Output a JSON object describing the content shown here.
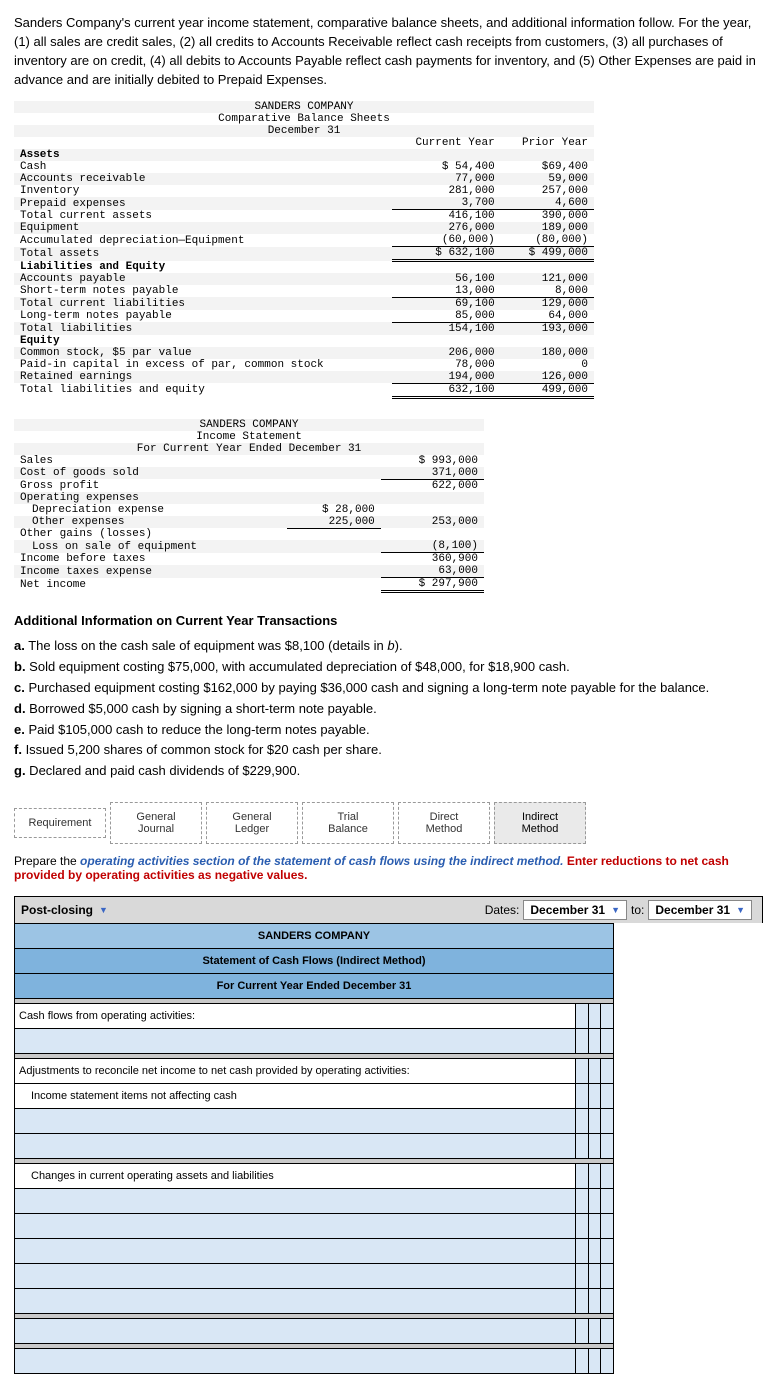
{
  "intro": "Sanders Company's current year income statement, comparative balance sheets, and additional information follow. For the year, (1) all sales are credit sales, (2) all credits to Accounts Receivable reflect cash receipts from customers, (3) all purchases of inventory are on credit, (4) all debits to Accounts Payable reflect cash payments for inventory, and (5) Other Expenses are paid in advance and are initially debited to Prepaid Expenses.",
  "bs_head1": "SANDERS COMPANY",
  "bs_head2": "Comparative Balance Sheets",
  "bs_head3": "December 31",
  "col_cy": "Current Year",
  "col_py": "Prior Year",
  "assets_h": "Assets",
  "rows_bs": [
    {
      "l": "Cash",
      "c": "$ 54,400",
      "p": "$69,400"
    },
    {
      "l": "Accounts receivable",
      "c": "77,000",
      "p": "59,000"
    },
    {
      "l": "Inventory",
      "c": "281,000",
      "p": "257,000"
    },
    {
      "l": "Prepaid expenses",
      "c": "3,700",
      "p": "4,600"
    },
    {
      "l": "Total current assets",
      "c": "416,100",
      "p": "390,000"
    },
    {
      "l": "Equipment",
      "c": "276,000",
      "p": "189,000"
    },
    {
      "l": "Accumulated depreciation—Equipment",
      "c": "(60,000)",
      "p": "(80,000)"
    }
  ],
  "total_assets": {
    "l": "Total assets",
    "c": "$ 632,100",
    "p": "$ 499,000"
  },
  "liab_h": "Liabilities and Equity",
  "rows_liab": [
    {
      "l": "Accounts payable",
      "c": "56,100",
      "p": "121,000"
    },
    {
      "l": "Short-term notes payable",
      "c": "13,000",
      "p": "8,000"
    },
    {
      "l": "Total current liabilities",
      "c": "69,100",
      "p": "129,000"
    },
    {
      "l": "Long-term notes payable",
      "c": "85,000",
      "p": "64,000"
    },
    {
      "l": "Total liabilities",
      "c": "154,100",
      "p": "193,000"
    }
  ],
  "eq_h": "Equity",
  "rows_eq": [
    {
      "l": "Common stock, $5 par value",
      "c": "206,000",
      "p": "180,000"
    },
    {
      "l": "Paid-in capital in excess of par, common stock",
      "c": "78,000",
      "p": "0"
    },
    {
      "l": "Retained earnings",
      "c": "194,000",
      "p": "126,000"
    }
  ],
  "total_le": {
    "l": "Total liabilities and equity",
    "c": "632,100",
    "p": "499,000"
  },
  "is_head1": "SANDERS COMPANY",
  "is_head2": "Income Statement",
  "is_head3": "For Current Year Ended December 31",
  "is_rows": {
    "sales": {
      "l": "Sales",
      "v": "$ 993,000"
    },
    "cogs": {
      "l": "Cost of goods sold",
      "v": "371,000"
    },
    "gp": {
      "l": "Gross profit",
      "v": "622,000"
    },
    "opex_h": "Operating expenses",
    "dep": {
      "l": "Depreciation expense",
      "v": "$ 28,000"
    },
    "oth": {
      "l": "Other expenses",
      "v": "225,000",
      "tot": "253,000"
    },
    "ogl_h": "Other gains (losses)",
    "loss": {
      "l": "Loss on sale of equipment",
      "v": "(8,100)"
    },
    "ibt": {
      "l": "Income before taxes",
      "v": "360,900"
    },
    "tax": {
      "l": "Income taxes expense",
      "v": "63,000"
    },
    "ni": {
      "l": "Net income",
      "v": "$ 297,900"
    }
  },
  "add_title": "Additional Information on Current Year Transactions",
  "add_items": [
    "a. The loss on the cash sale of equipment was $8,100 (details in b).",
    "b. Sold equipment costing $75,000, with accumulated depreciation of $48,000, for $18,900 cash.",
    "c. Purchased equipment costing $162,000 by paying $36,000 cash and signing a long-term note payable for the balance.",
    "d. Borrowed $5,000 cash by signing a short-term note payable.",
    "e. Paid $105,000 cash to reduce the long-term notes payable.",
    "f. Issued 5,200 shares of common stock for $20 cash per share.",
    "g. Declared and paid cash dividends of $229,900."
  ],
  "tabs": [
    "Requirement",
    "General Journal",
    "General Ledger",
    "Trial Balance",
    "Direct Method",
    "Indirect Method"
  ],
  "instr1": "Prepare the ",
  "instr_op": "operating activities section of the statement of cash flows using the indirect method.",
  "instr_enter": "Enter reductions to net cash provided by operating activities as negative values.",
  "post_closing": "Post-closing",
  "dates_lbl": "Dates:",
  "date1": "December 31",
  "to_lbl": "to:",
  "date2": "December 31",
  "ws_h1": "SANDERS COMPANY",
  "ws_h2": "Statement of Cash Flows (Indirect Method)",
  "ws_h3": "For Current Year Ended December 31",
  "ws_r1": "Cash flows from operating activities:",
  "ws_r2": "Adjustments to reconcile net income to net cash provided by operating activities:",
  "ws_r3": "Income statement items not affecting cash",
  "ws_r4": "Changes in current operating assets and liabilities"
}
